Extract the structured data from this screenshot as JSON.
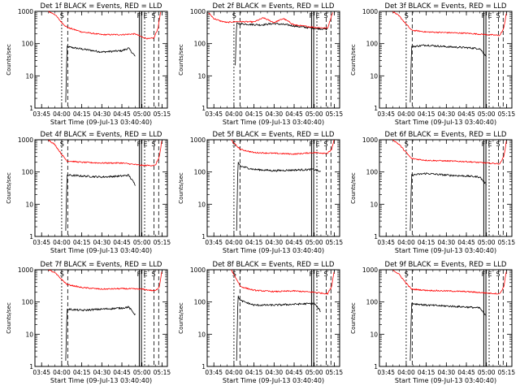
{
  "figure": {
    "y_ticks": [
      "1",
      "10",
      "100",
      "1000"
    ],
    "x_ticks": [
      "03:45",
      "04:00",
      "04:15",
      "04:30",
      "04:45",
      "05:00",
      "05:15"
    ],
    "colors": {
      "events": "#000000",
      "lld": "#ff0000",
      "frame": "#000000"
    }
  },
  "chart_data": [
    {
      "type": "line",
      "title": "Det 1f BLACK = Events, RED = LLD",
      "xlabel": "Start Time (09-Jul-13 03:40:40)",
      "ylabel": "Counts/sec",
      "xlim": [
        "03:40",
        "05:19"
      ],
      "ylim": [
        1,
        1000
      ],
      "yscale": "log",
      "markers": [
        "S",
        "F",
        "E",
        "S"
      ],
      "series": [
        {
          "name": "Events",
          "x": [
            "04:03",
            "04:04",
            "04:15",
            "04:30",
            "04:45",
            "04:50",
            "04:55"
          ],
          "values": [
            1.5,
            80,
            68,
            55,
            60,
            72,
            40
          ]
        },
        {
          "name": "LLD",
          "x": [
            "03:50",
            "03:55",
            "04:00",
            "04:04",
            "04:15",
            "04:30",
            "04:45",
            "04:55",
            "05:00",
            "05:05",
            "05:09",
            "05:12",
            "05:14"
          ],
          "values": [
            1000,
            800,
            450,
            320,
            230,
            190,
            190,
            200,
            160,
            140,
            150,
            300,
            1000
          ]
        }
      ]
    },
    {
      "type": "line",
      "title": "Det 2f BLACK = Events, RED = LLD",
      "xlabel": "Start Time (09-Jul-13 03:40:40)",
      "ylabel": "Counts/sec",
      "xlim": [
        "03:40",
        "05:19"
      ],
      "ylim": [
        1,
        1000
      ],
      "yscale": "log",
      "markers": [
        "S",
        "F",
        "E",
        "S"
      ],
      "series": [
        {
          "name": "Events",
          "x": [
            "04:01",
            "04:02",
            "04:10",
            "04:20",
            "04:30",
            "04:40",
            "04:50",
            "05:00",
            "05:10"
          ],
          "values": [
            20,
            420,
            400,
            380,
            420,
            380,
            330,
            300,
            280
          ]
        },
        {
          "name": "LLD",
          "x": [
            "03:41",
            "03:45",
            "03:50",
            "03:55",
            "04:00",
            "04:05",
            "04:15",
            "04:22",
            "04:30",
            "04:37",
            "04:45",
            "05:00",
            "05:10",
            "05:14"
          ],
          "values": [
            900,
            600,
            500,
            450,
            480,
            480,
            470,
            630,
            450,
            600,
            380,
            320,
            300,
            1000
          ]
        }
      ]
    },
    {
      "type": "line",
      "title": "Det 3f BLACK = Events, RED = LLD",
      "xlabel": "Start Time (09-Jul-13 03:40:40)",
      "ylabel": "Counts/sec",
      "xlim": [
        "03:40",
        "05:19"
      ],
      "ylim": [
        1,
        1000
      ],
      "yscale": "log",
      "markers": [
        "S",
        "F",
        "E",
        "S"
      ],
      "series": [
        {
          "name": "Events",
          "x": [
            "04:03",
            "04:04",
            "04:15",
            "04:30",
            "04:45",
            "04:55",
            "05:00"
          ],
          "values": [
            1.5,
            80,
            90,
            80,
            75,
            70,
            40
          ]
        },
        {
          "name": "LLD",
          "x": [
            "03:50",
            "03:55",
            "04:00",
            "04:04",
            "04:15",
            "04:30",
            "04:45",
            "05:00",
            "05:10",
            "05:13",
            "05:15"
          ],
          "values": [
            1000,
            700,
            400,
            260,
            230,
            220,
            210,
            190,
            180,
            300,
            1000
          ]
        }
      ]
    },
    {
      "type": "line",
      "title": "Det 4f BLACK = Events, RED = LLD",
      "xlabel": "Start Time (09-Jul-13 03:40:40)",
      "ylabel": "Counts/sec",
      "xlim": [
        "03:40",
        "05:19"
      ],
      "ylim": [
        1,
        1000
      ],
      "yscale": "log",
      "markers": [
        "S",
        "F",
        "E",
        "S"
      ],
      "series": [
        {
          "name": "Events",
          "x": [
            "04:03",
            "04:04",
            "04:15",
            "04:30",
            "04:45",
            "04:50",
            "04:55"
          ],
          "values": [
            1.5,
            80,
            75,
            70,
            75,
            80,
            40
          ]
        },
        {
          "name": "LLD",
          "x": [
            "03:50",
            "03:55",
            "04:00",
            "04:04",
            "04:15",
            "04:30",
            "04:45",
            "05:00",
            "05:10",
            "05:13",
            "05:15"
          ],
          "values": [
            1000,
            700,
            350,
            220,
            200,
            190,
            190,
            160,
            160,
            300,
            1000
          ]
        }
      ]
    },
    {
      "type": "line",
      "title": "Det 5f BLACK = Events, RED = LLD",
      "xlabel": "Start Time (09-Jul-13 03:40:40)",
      "ylabel": "Counts/sec",
      "xlim": [
        "03:40",
        "05:19"
      ],
      "ylim": [
        1,
        1000
      ],
      "yscale": "log",
      "markers": [
        "S",
        "F",
        "E",
        "S"
      ],
      "series": [
        {
          "name": "Events",
          "x": [
            "04:02",
            "04:03",
            "04:05",
            "04:15",
            "04:30",
            "04:45",
            "05:00",
            "05:05"
          ],
          "values": [
            1.5,
            200,
            150,
            120,
            110,
            115,
            120,
            100
          ]
        },
        {
          "name": "LLD",
          "x": [
            "03:58",
            "04:01",
            "04:05",
            "04:15",
            "04:30",
            "04:45",
            "05:00",
            "05:10",
            "05:13",
            "05:15"
          ],
          "values": [
            1000,
            700,
            500,
            400,
            380,
            360,
            400,
            380,
            500,
            1000
          ]
        }
      ]
    },
    {
      "type": "line",
      "title": "Det 6f BLACK = Events, RED = LLD",
      "xlabel": "Start Time (09-Jul-13 03:40:40)",
      "ylabel": "Counts/sec",
      "xlim": [
        "03:40",
        "05:19"
      ],
      "ylim": [
        1,
        1000
      ],
      "yscale": "log",
      "markers": [
        "S",
        "F",
        "E",
        "S"
      ],
      "series": [
        {
          "name": "Events",
          "x": [
            "04:03",
            "04:04",
            "04:15",
            "04:30",
            "04:45",
            "04:55",
            "05:00"
          ],
          "values": [
            1.5,
            80,
            90,
            80,
            75,
            70,
            40
          ]
        },
        {
          "name": "LLD",
          "x": [
            "03:50",
            "03:55",
            "04:00",
            "04:04",
            "04:15",
            "04:30",
            "04:45",
            "05:00",
            "05:10",
            "05:13",
            "05:15"
          ],
          "values": [
            1000,
            700,
            400,
            260,
            230,
            220,
            210,
            190,
            180,
            300,
            1000
          ]
        }
      ]
    },
    {
      "type": "line",
      "title": "Det 7f BLACK = Events, RED = LLD",
      "xlabel": "Start Time (09-Jul-13 03:40:40)",
      "ylabel": "Counts/sec",
      "xlim": [
        "03:40",
        "05:19"
      ],
      "ylim": [
        1,
        1000
      ],
      "yscale": "log",
      "markers": [
        "S",
        "F",
        "E",
        "S"
      ],
      "series": [
        {
          "name": "Events",
          "x": [
            "04:03",
            "04:04",
            "04:15",
            "04:30",
            "04:45",
            "04:50",
            "04:55"
          ],
          "values": [
            1.5,
            60,
            55,
            60,
            65,
            70,
            40
          ]
        },
        {
          "name": "LLD",
          "x": [
            "03:50",
            "03:55",
            "04:00",
            "04:04",
            "04:15",
            "04:30",
            "04:45",
            "05:00",
            "05:10",
            "05:13",
            "05:15"
          ],
          "values": [
            1000,
            800,
            500,
            350,
            280,
            250,
            260,
            250,
            220,
            300,
            1000
          ]
        }
      ]
    },
    {
      "type": "line",
      "title": "Det 8f BLACK = Events, RED = LLD",
      "xlabel": "Start Time (09-Jul-13 03:40:40)",
      "ylabel": "Counts/sec",
      "xlim": [
        "03:40",
        "05:19"
      ],
      "ylim": [
        1,
        1000
      ],
      "yscale": "log",
      "markers": [
        "S",
        "F",
        "E",
        "S"
      ],
      "series": [
        {
          "name": "Events",
          "x": [
            "04:02",
            "04:03",
            "04:05",
            "04:15",
            "04:30",
            "04:45",
            "05:00",
            "05:05"
          ],
          "values": [
            1.5,
            150,
            110,
            80,
            80,
            85,
            90,
            50
          ]
        },
        {
          "name": "LLD",
          "x": [
            "03:58",
            "04:01",
            "04:05",
            "04:15",
            "04:30",
            "04:45",
            "05:00",
            "05:10",
            "05:13",
            "05:15"
          ],
          "values": [
            1000,
            600,
            300,
            230,
            210,
            220,
            200,
            180,
            300,
            1000
          ]
        }
      ]
    },
    {
      "type": "line",
      "title": "Det 9f BLACK = Events, RED = LLD",
      "xlabel": "Start Time (09-Jul-13 03:40:40)",
      "ylabel": "Counts/sec",
      "xlim": [
        "03:40",
        "05:19"
      ],
      "ylim": [
        1,
        1000
      ],
      "yscale": "log",
      "markers": [
        "S",
        "F",
        "E",
        "S"
      ],
      "series": [
        {
          "name": "Events",
          "x": [
            "04:03",
            "04:04",
            "04:15",
            "04:30",
            "04:45",
            "04:55",
            "05:00"
          ],
          "values": [
            1.5,
            90,
            80,
            75,
            70,
            65,
            35
          ]
        },
        {
          "name": "LLD",
          "x": [
            "03:50",
            "03:55",
            "04:00",
            "04:04",
            "04:15",
            "04:30",
            "04:45",
            "05:00",
            "05:10",
            "05:13",
            "05:15"
          ],
          "values": [
            1000,
            700,
            380,
            250,
            230,
            220,
            210,
            190,
            180,
            300,
            1000
          ]
        }
      ]
    }
  ]
}
